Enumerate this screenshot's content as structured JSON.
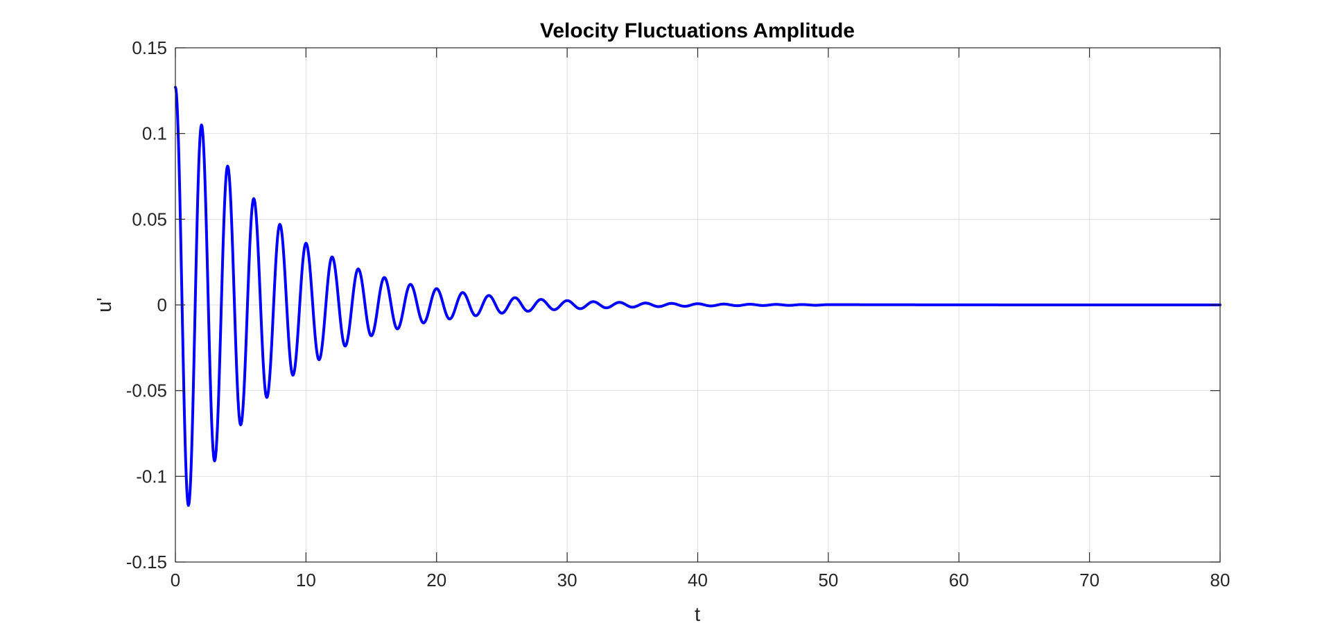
{
  "chart_data": {
    "type": "line",
    "title": "Velocity Fluctuations Amplitude",
    "xlabel": "t",
    "ylabel": "u'",
    "xlim": [
      0,
      80
    ],
    "ylim": [
      -0.15,
      0.15
    ],
    "xticks": [
      0,
      10,
      20,
      30,
      40,
      50,
      60,
      70,
      80
    ],
    "xtick_labels": [
      "0",
      "10",
      "20",
      "30",
      "40",
      "50",
      "60",
      "70",
      "80"
    ],
    "yticks": [
      -0.15,
      -0.1,
      -0.05,
      0,
      0.05,
      0.1,
      0.15
    ],
    "ytick_labels": [
      "-0.15",
      "-0.1",
      "-0.05",
      "0",
      "0.05",
      "0.1",
      "0.15"
    ],
    "grid": true,
    "series": [
      {
        "color": "#0000ff",
        "x": [
          0,
          1,
          2,
          3,
          4,
          5,
          6,
          7,
          8,
          9,
          10,
          11,
          12,
          13,
          14,
          15,
          16,
          17,
          18,
          19,
          20,
          21,
          22,
          23,
          24,
          25,
          26,
          27,
          28,
          29,
          30,
          31,
          32,
          33,
          34,
          35,
          36,
          37,
          38,
          39,
          40,
          41,
          42,
          43,
          44,
          45,
          46,
          47,
          48,
          49,
          50,
          52,
          54,
          56,
          58,
          60,
          65,
          70,
          75,
          80
        ],
        "y": [
          0.127,
          -0.117,
          0.105,
          -0.091,
          0.081,
          -0.07,
          0.062,
          -0.054,
          0.047,
          -0.041,
          0.036,
          -0.032,
          0.028,
          -0.024,
          0.021,
          -0.018,
          0.016,
          -0.014,
          0.012,
          -0.0105,
          0.0095,
          -0.0082,
          0.0072,
          -0.0063,
          0.0055,
          -0.0048,
          0.0042,
          -0.0037,
          0.0032,
          -0.0028,
          0.0025,
          -0.0022,
          0.0019,
          -0.0017,
          0.0015,
          -0.0013,
          0.0011,
          -0.001,
          0.0009,
          -0.0008,
          0.0007,
          -0.0006,
          0.0005,
          -0.00045,
          0.0004,
          -0.00035,
          0.0003,
          -0.00026,
          0.00023,
          -0.0002,
          0.00017,
          0.00013,
          0.0001,
          8e-05,
          6e-05,
          4e-05,
          2e-05,
          1e-05,
          0.0,
          0.0
        ]
      }
    ]
  }
}
